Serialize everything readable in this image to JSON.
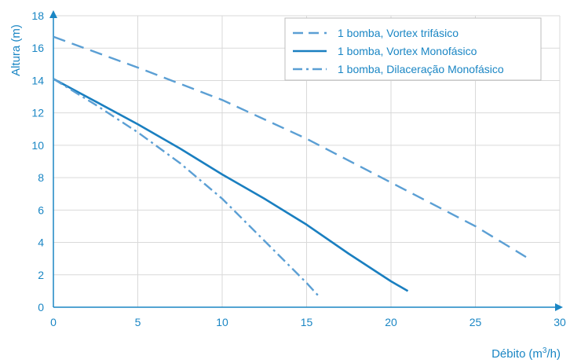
{
  "chart_data": {
    "type": "line",
    "title": "",
    "xlabel": "Débito",
    "xlabel_unit_prefix": "(m",
    "xlabel_unit_sup": "3",
    "xlabel_unit_suffix": "/h)",
    "ylabel": "Altura (m)",
    "xlim": [
      0,
      30
    ],
    "ylim": [
      0,
      18
    ],
    "xticks": [
      0,
      5,
      10,
      15,
      20,
      25,
      30
    ],
    "yticks": [
      0,
      2,
      4,
      6,
      8,
      10,
      12,
      14,
      16,
      18
    ],
    "grid": true,
    "legend_position": "top-right",
    "series": [
      {
        "name": "1 bomba, Vortex trifásico",
        "style": "dashed",
        "color": "#5b9fd4",
        "x": [
          0,
          5,
          10,
          15,
          20,
          25,
          28
        ],
        "y": [
          16.7,
          14.8,
          12.8,
          10.4,
          7.7,
          5.0,
          3.1
        ]
      },
      {
        "name": "1 bomba, Vortex Monofásico",
        "style": "solid",
        "color": "#1a7fc0",
        "x": [
          0,
          2.5,
          5,
          7.5,
          10,
          12.5,
          15,
          17.5,
          20,
          21
        ],
        "y": [
          14.1,
          12.7,
          11.3,
          9.8,
          8.2,
          6.7,
          5.1,
          3.3,
          1.6,
          1.0
        ]
      },
      {
        "name": "1 bomba, Dilaceração Monofásico",
        "style": "dashdot",
        "color": "#5b9fd4",
        "x": [
          0,
          2.5,
          5,
          7.5,
          10,
          12.5,
          15,
          15.7
        ],
        "y": [
          14.1,
          12.5,
          10.8,
          8.9,
          6.7,
          4.1,
          1.5,
          0.7
        ]
      }
    ]
  }
}
